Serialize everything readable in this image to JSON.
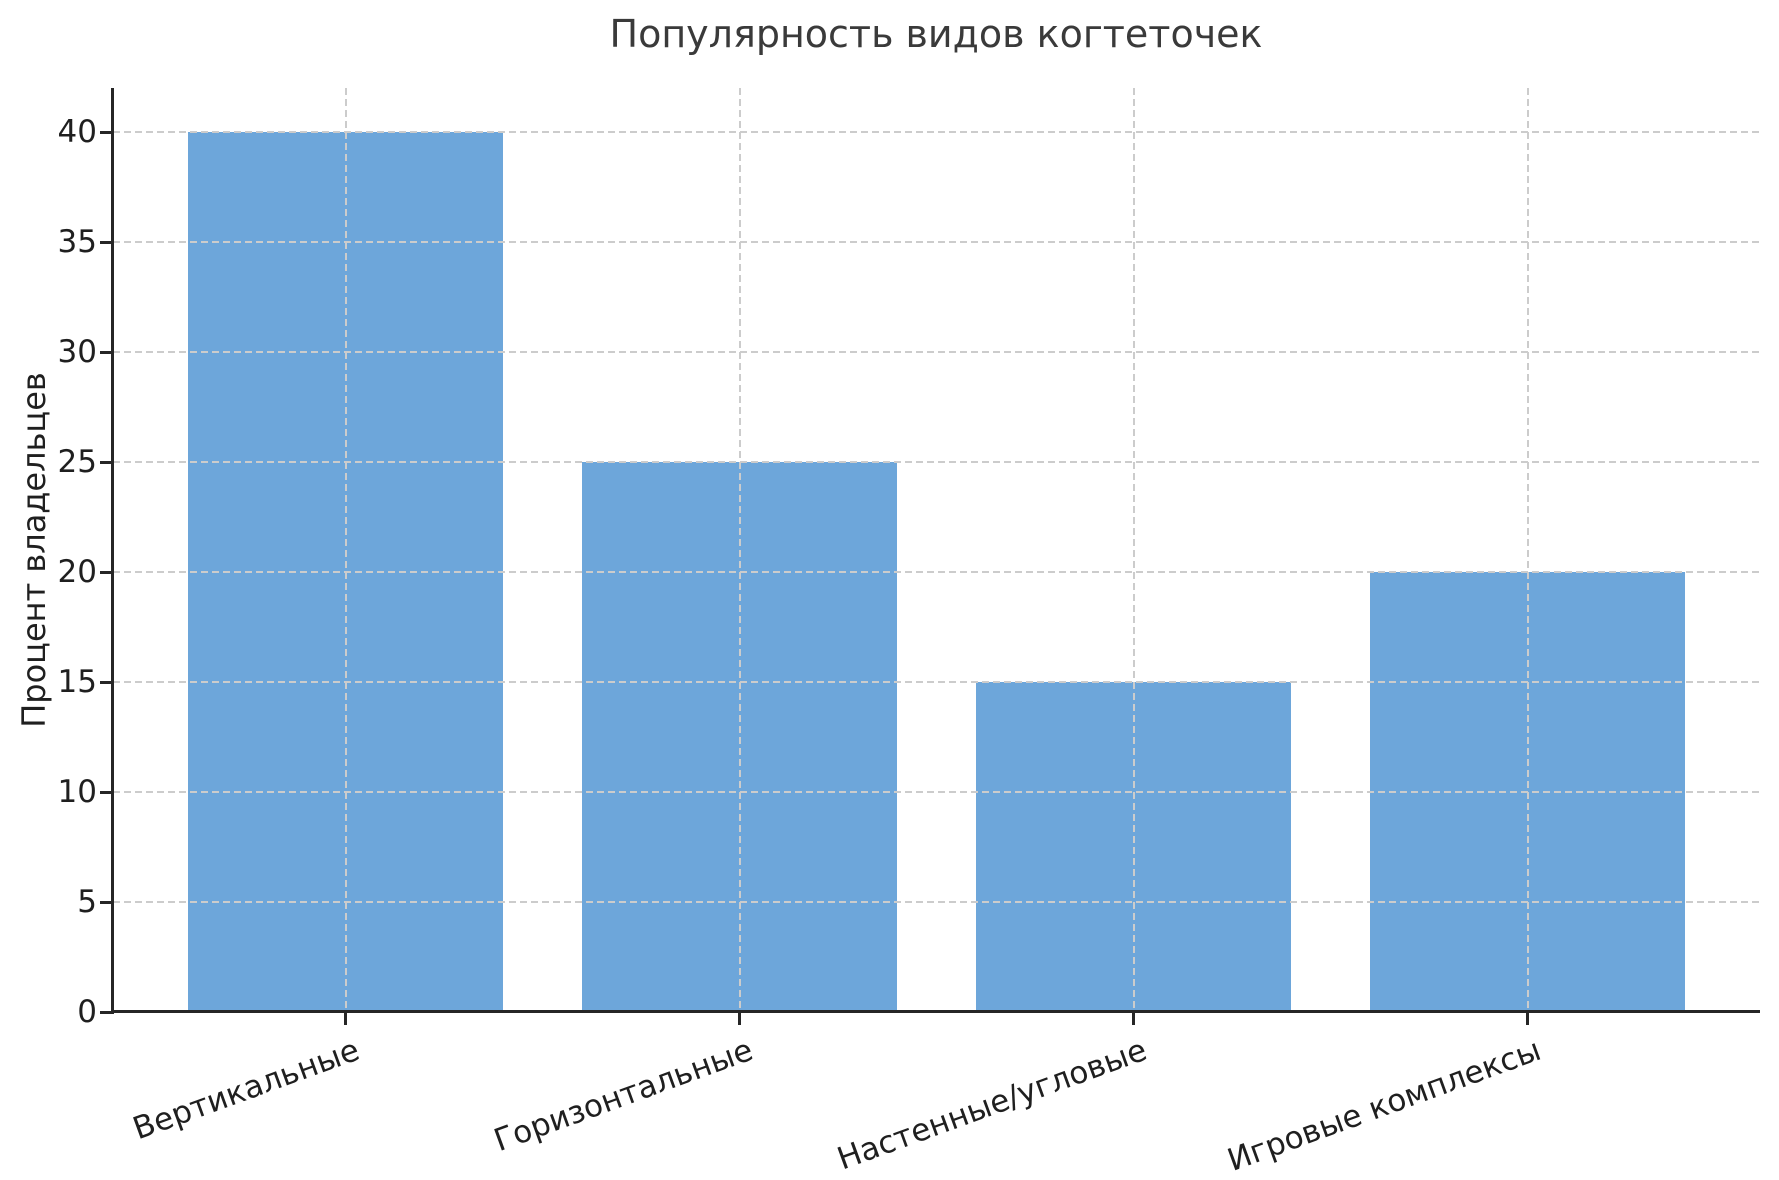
{
  "chart_data": {
    "type": "bar",
    "title": "Популярность видов когтеточек",
    "ylabel": "Процент владельцев",
    "xlabel": "",
    "categories": [
      "Вертикальные",
      "Горизонтальные",
      "Настенные/угловые",
      "Игровые комплексы"
    ],
    "values": [
      40,
      25,
      15,
      20
    ],
    "yticks": [
      0,
      5,
      10,
      15,
      20,
      25,
      30,
      35,
      40
    ],
    "ylim": [
      0,
      42
    ],
    "xlim": [
      -0.59,
      3.59
    ],
    "bar_rel_width": 0.8,
    "x_tick_rotation_deg": 20,
    "grid": "dashed-both-axes",
    "legend": null,
    "colors": {
      "bar": "#6da6da",
      "grid": "#cccccc",
      "spine": "#262626",
      "tick_label": "#1f1f1f",
      "title": "#3a3a3a"
    }
  }
}
